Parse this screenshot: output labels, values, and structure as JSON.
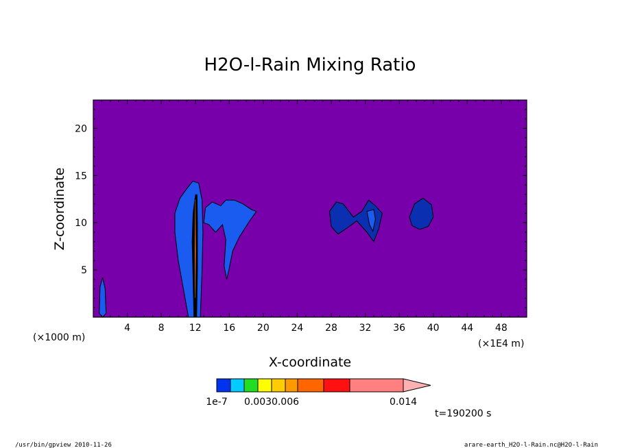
{
  "chart_data": {
    "type": "heatmap",
    "title": "H2O-l-Rain Mixing Ratio",
    "xlabel": "X-coordinate",
    "ylabel": "Z-coordinate",
    "x_unit_left": "(×1000 m)",
    "x_unit_right": "(×1E4 m)",
    "xlim": [
      0,
      51
    ],
    "ylim": [
      0,
      23
    ],
    "x_ticks": [
      4,
      8,
      12,
      16,
      20,
      24,
      28,
      32,
      36,
      40,
      44,
      48
    ],
    "y_ticks": [
      5,
      10,
      15,
      20
    ],
    "background_color": "#7700aa",
    "colorbar": {
      "colors": [
        "#0033ee",
        "#00ccff",
        "#22dd22",
        "#ffff00",
        "#ffcc00",
        "#ff9900",
        "#ff6600",
        "#ff1111",
        "#ff8080",
        "#ffb0b0"
      ],
      "tick_labels": [
        {
          "label": "1e-7",
          "level": 0
        },
        {
          "label": "0.003",
          "level": 3
        },
        {
          "label": "0.006",
          "level": 5
        },
        {
          "label": "0.014",
          "level": 9
        }
      ]
    },
    "time_label": "t=190200 s",
    "regions": [
      {
        "name": "tower-12",
        "color": "#1a5cf0",
        "points": [
          [
            11.2,
            0
          ],
          [
            10.6,
            3
          ],
          [
            10.0,
            6
          ],
          [
            9.6,
            9
          ],
          [
            9.6,
            11
          ],
          [
            10.2,
            12.6
          ],
          [
            11.0,
            13.6
          ],
          [
            11.7,
            14.4
          ],
          [
            12.4,
            14.2
          ],
          [
            12.8,
            12.4
          ],
          [
            12.9,
            9
          ],
          [
            12.8,
            5
          ],
          [
            12.6,
            0
          ]
        ]
      },
      {
        "name": "core-12",
        "color": "#000000",
        "points": [
          [
            11.8,
            0
          ],
          [
            11.7,
            4
          ],
          [
            11.6,
            8
          ],
          [
            11.7,
            11
          ],
          [
            12.0,
            13
          ],
          [
            12.25,
            13
          ],
          [
            12.3,
            10
          ],
          [
            12.3,
            5
          ],
          [
            12.2,
            0
          ]
        ]
      },
      {
        "name": "core-12-orange",
        "color": "#ff7700",
        "points": [
          [
            11.93,
            2
          ],
          [
            11.9,
            7
          ],
          [
            11.95,
            12.5
          ],
          [
            12.07,
            12.5
          ],
          [
            12.1,
            7
          ],
          [
            12.05,
            2
          ]
        ]
      },
      {
        "name": "cloud-16",
        "color": "#1a5cf0",
        "points": [
          [
            13.0,
            10
          ],
          [
            13.2,
            11.6
          ],
          [
            14.0,
            12.2
          ],
          [
            15.0,
            11.8
          ],
          [
            15.6,
            12.4
          ],
          [
            16.6,
            12.4
          ],
          [
            17.6,
            12.0
          ],
          [
            18.6,
            11.4
          ],
          [
            19.2,
            11.2
          ],
          [
            18.4,
            10.2
          ],
          [
            17.2,
            8.5
          ],
          [
            16.4,
            7.0
          ],
          [
            16.0,
            5.2
          ],
          [
            15.7,
            4.0
          ],
          [
            15.4,
            5.4
          ],
          [
            15.6,
            8.2
          ],
          [
            15.2,
            9.8
          ],
          [
            14.4,
            9.0
          ],
          [
            13.6,
            9.8
          ]
        ]
      },
      {
        "name": "cloud-30",
        "color": "#0a2fb0",
        "points": [
          [
            27.8,
            11.2
          ],
          [
            28.6,
            12.2
          ],
          [
            29.4,
            12.0
          ],
          [
            30.6,
            10.6
          ],
          [
            31.6,
            11.2
          ],
          [
            32.4,
            12.4
          ],
          [
            33.2,
            11.8
          ],
          [
            34.0,
            11.0
          ],
          [
            33.6,
            9.4
          ],
          [
            33.0,
            8.0
          ],
          [
            32.2,
            9.0
          ],
          [
            31.0,
            10.2
          ],
          [
            29.8,
            9.4
          ],
          [
            28.8,
            8.8
          ],
          [
            28.0,
            9.6
          ]
        ]
      },
      {
        "name": "cloud-30-inner",
        "color": "#1a5cf0",
        "points": [
          [
            32.2,
            11.2
          ],
          [
            33.0,
            11.4
          ],
          [
            33.2,
            10.4
          ],
          [
            32.9,
            9.1
          ],
          [
            32.5,
            9.8
          ]
        ]
      },
      {
        "name": "cloud-39",
        "color": "#0a2fb0",
        "points": [
          [
            37.2,
            10.6
          ],
          [
            37.8,
            12.0
          ],
          [
            38.8,
            12.6
          ],
          [
            39.8,
            11.9
          ],
          [
            40.0,
            10.6
          ],
          [
            39.4,
            9.6
          ],
          [
            38.4,
            9.3
          ],
          [
            37.5,
            9.7
          ]
        ]
      },
      {
        "name": "sliver-1",
        "color": "#1a5cf0",
        "points": [
          [
            0.7,
            0.4
          ],
          [
            0.8,
            3.2
          ],
          [
            1.1,
            4.2
          ],
          [
            1.4,
            3.0
          ],
          [
            1.5,
            0.4
          ],
          [
            1.1,
            0
          ]
        ]
      }
    ]
  },
  "footer": {
    "left": "/usr/bin/gpview   2010-11-26",
    "right": "arare-earth_H2O-l-Rain.nc@H2O-l-Rain"
  }
}
